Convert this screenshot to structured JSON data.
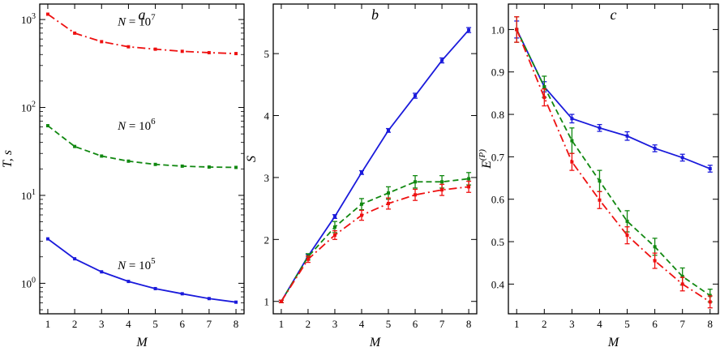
{
  "chart_data": [
    {
      "type": "line",
      "panel_label": "a",
      "xlabel": "M",
      "ylabel": "T, s",
      "yscale": "log",
      "x": [
        1,
        2,
        3,
        4,
        5,
        6,
        7,
        8
      ],
      "xlim": [
        0.7,
        8.3
      ],
      "ylim": [
        0.45,
        1500
      ],
      "xticks": [
        "1",
        "2",
        "3",
        "4",
        "5",
        "6",
        "7",
        "8"
      ],
      "yticks": [
        {
          "value": 1,
          "base": "10",
          "exp": "0"
        },
        {
          "value": 10,
          "base": "10",
          "exp": "1"
        },
        {
          "value": 100,
          "base": "10",
          "exp": "2"
        },
        {
          "value": 1000,
          "base": "10",
          "exp": "3"
        }
      ],
      "series": [
        {
          "color": "#ee1111",
          "dash": "dashdot",
          "errorbars": false,
          "values": [
            1150,
            700,
            560,
            490,
            460,
            435,
            420,
            410
          ]
        },
        {
          "color": "#118811",
          "dash": "dashed",
          "errorbars": false,
          "values": [
            62,
            36,
            28,
            24.5,
            22.5,
            21.5,
            21,
            20.8
          ]
        },
        {
          "color": "#1a1adb",
          "dash": "solid",
          "errorbars": false,
          "values": [
            3.2,
            1.9,
            1.35,
            1.05,
            0.87,
            0.76,
            0.67,
            0.61
          ]
        }
      ],
      "annotations": [
        {
          "text": "N = 10",
          "exp": "7",
          "x": 3.6,
          "y": 850
        },
        {
          "text": "N = 10",
          "exp": "6",
          "x": 3.6,
          "y": 56
        },
        {
          "text": "N = 10",
          "exp": "5",
          "x": 3.6,
          "y": 1.45
        }
      ]
    },
    {
      "type": "line",
      "panel_label": "b",
      "xlabel": "M",
      "ylabel": "S",
      "yscale": "linear",
      "x": [
        1,
        2,
        3,
        4,
        5,
        6,
        7,
        8
      ],
      "xlim": [
        0.7,
        8.3
      ],
      "ylim": [
        0.8,
        5.8
      ],
      "xticks": [
        "1",
        "2",
        "3",
        "4",
        "5",
        "6",
        "7",
        "8"
      ],
      "yticks": [
        {
          "value": 1,
          "label": "1"
        },
        {
          "value": 2,
          "label": "2"
        },
        {
          "value": 3,
          "label": "3"
        },
        {
          "value": 4,
          "label": "4"
        },
        {
          "value": 5,
          "label": "5"
        }
      ],
      "series": [
        {
          "color": "#1a1adb",
          "dash": "solid",
          "errorbars": true,
          "values": [
            1.0,
            1.73,
            2.37,
            3.08,
            3.76,
            4.32,
            4.89,
            5.38
          ],
          "errors": [
            0.02,
            0.03,
            0.03,
            0.03,
            0.03,
            0.04,
            0.04,
            0.04
          ]
        },
        {
          "color": "#118811",
          "dash": "dashed",
          "errorbars": true,
          "values": [
            1.0,
            1.72,
            2.2,
            2.57,
            2.75,
            2.93,
            2.93,
            2.98
          ],
          "errors": [
            0.02,
            0.05,
            0.09,
            0.09,
            0.1,
            0.1,
            0.1,
            0.1
          ]
        },
        {
          "color": "#ee1111",
          "dash": "dashdot",
          "errorbars": true,
          "values": [
            1.0,
            1.68,
            2.07,
            2.39,
            2.58,
            2.72,
            2.8,
            2.85
          ],
          "errors": [
            0.02,
            0.05,
            0.07,
            0.08,
            0.09,
            0.09,
            0.09,
            0.09
          ]
        }
      ]
    },
    {
      "type": "line",
      "panel_label": "c",
      "xlabel": "M",
      "ylabel": "E",
      "ylabel_sup": "(P)",
      "yscale": "linear",
      "x": [
        1,
        2,
        3,
        4,
        5,
        6,
        7,
        8
      ],
      "xlim": [
        0.7,
        8.3
      ],
      "ylim": [
        0.33,
        1.06
      ],
      "xticks": [
        "1",
        "2",
        "3",
        "4",
        "5",
        "6",
        "7",
        "8"
      ],
      "yticks": [
        {
          "value": 0.4,
          "label": "0.4"
        },
        {
          "value": 0.5,
          "label": "0.5"
        },
        {
          "value": 0.6,
          "label": "0.6"
        },
        {
          "value": 0.7,
          "label": "0.7"
        },
        {
          "value": 0.8,
          "label": "0.8"
        },
        {
          "value": 0.9,
          "label": "0.9"
        },
        {
          "value": 1.0,
          "label": "1.0"
        }
      ],
      "series": [
        {
          "color": "#1a1adb",
          "dash": "solid",
          "errorbars": true,
          "values": [
            1.0,
            0.865,
            0.79,
            0.768,
            0.749,
            0.72,
            0.698,
            0.672
          ],
          "errors": [
            0.02,
            0.012,
            0.01,
            0.008,
            0.01,
            0.008,
            0.008,
            0.008
          ]
        },
        {
          "color": "#118811",
          "dash": "dashed",
          "errorbars": true,
          "values": [
            1.0,
            0.865,
            0.738,
            0.643,
            0.548,
            0.488,
            0.418,
            0.373
          ],
          "errors": [
            0.03,
            0.025,
            0.03,
            0.025,
            0.025,
            0.02,
            0.02,
            0.015
          ]
        },
        {
          "color": "#ee1111",
          "dash": "dashdot",
          "errorbars": true,
          "values": [
            1.0,
            0.84,
            0.688,
            0.598,
            0.515,
            0.455,
            0.4,
            0.358
          ],
          "errors": [
            0.03,
            0.02,
            0.02,
            0.02,
            0.02,
            0.018,
            0.016,
            0.014
          ]
        }
      ]
    }
  ]
}
